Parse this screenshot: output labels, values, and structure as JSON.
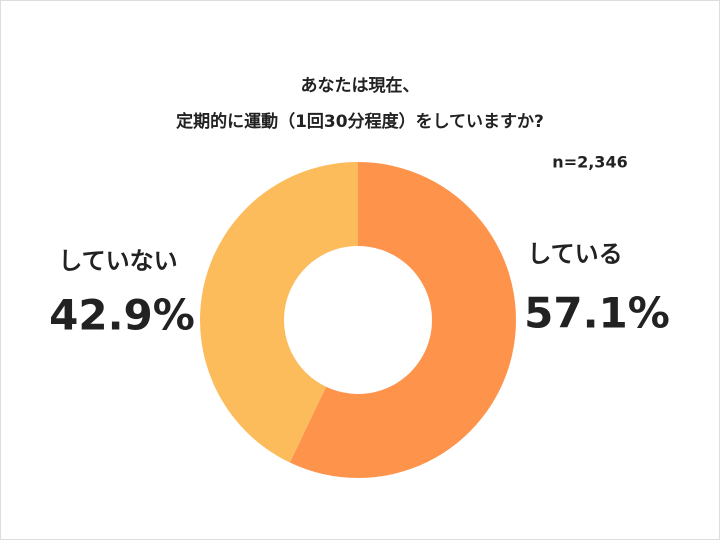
{
  "chart_data": {
    "type": "donut",
    "title": [
      "あなたは現在、",
      "定期的に運動（1回30分程度）をしていますか?"
    ],
    "annotation": "n=2,346",
    "categories": [
      "している",
      "していない"
    ],
    "values": [
      57.1,
      42.9
    ],
    "value_labels": [
      "57.1%",
      "42.9%"
    ],
    "colors": [
      "#fe934c",
      "#fdbc5b"
    ]
  }
}
